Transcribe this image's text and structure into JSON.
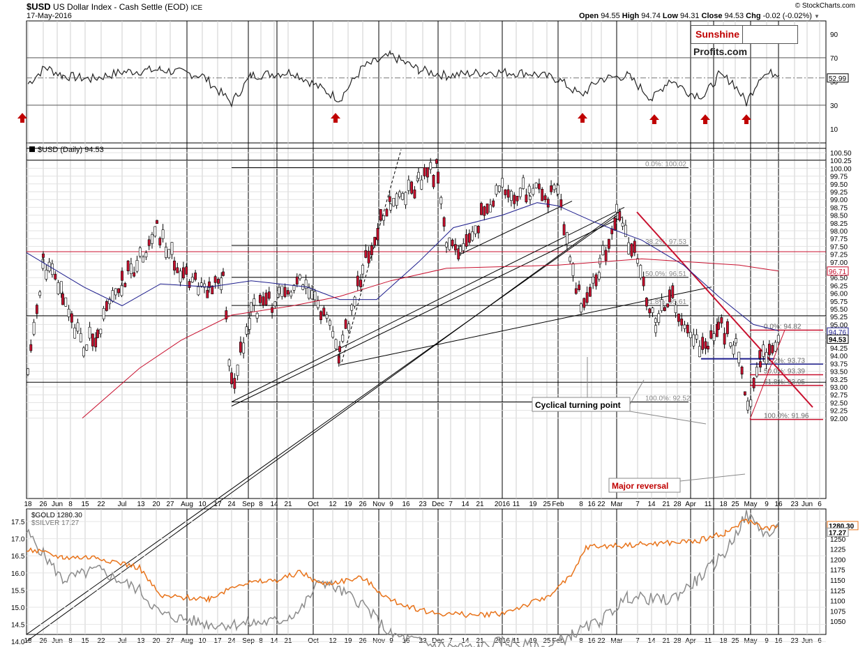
{
  "header": {
    "symbol": "$USD",
    "description": "US Dollar Index - Cash Settle (EOD)",
    "exchange": "ICE",
    "date": "17-May-2016",
    "watermark": "© StockCharts.com",
    "open_label": "Open",
    "open": "94.55",
    "high_label": "High",
    "high": "94.74",
    "low_label": "Low",
    "low": "94.31",
    "close_label": "Close",
    "close": "94.53",
    "chg_label": "Chg",
    "chg": "-0.02 (-0.02%)"
  },
  "logo": {
    "part1": "Sunshine",
    "part2": "Profits.com"
  },
  "colors": {
    "candle_down": "#c8102e",
    "ma50": "#1c1c8c",
    "ma200": "#c8102e",
    "gold": "#e8731a",
    "silver": "#8c8c8c",
    "arrow": "#c00000",
    "annotation_red": "#c00000"
  },
  "rsi_panel": {
    "levels": [
      "90",
      "70",
      "50",
      "30",
      "10"
    ],
    "current_label": "52.99"
  },
  "main_panel": {
    "legend": "$USD (Daily) 94.53",
    "price_label": "94.53",
    "ma50_label": "94.76",
    "ma200_label": "96.71",
    "y_ticks": [
      "100.50",
      "100.25",
      "100.00",
      "99.75",
      "99.50",
      "99.25",
      "99.00",
      "98.75",
      "98.50",
      "98.25",
      "98.00",
      "97.75",
      "97.50",
      "97.25",
      "97.00",
      "96.75",
      "96.50",
      "96.25",
      "96.00",
      "95.75",
      "95.50",
      "95.25",
      "95.00",
      "94.75",
      "94.50",
      "94.25",
      "94.00",
      "93.75",
      "93.50",
      "93.25",
      "93.00",
      "92.75",
      "92.50",
      "92.25",
      "92.00"
    ],
    "fib_upper": [
      "0.0%: 100.02",
      "38.2%: 97.53",
      "50.0%: 96.51",
      "61.8%: 95.61",
      "100.0%: 92.52"
    ],
    "fib_lower": [
      "0.0%: 94.82",
      "38.2%: 93.73",
      "50.0%: 93.39",
      "61.8%: 93.05",
      "100.0%: 91.96"
    ],
    "annotations": {
      "cyclical": "Cyclical turning point",
      "major": "Major reversal"
    }
  },
  "bottom_panel": {
    "gold_legend": "$GOLD 1280.30",
    "silver_legend": "$SILVER 17.27",
    "gold_label": "1280.30",
    "silver_label": "17.27",
    "left_ticks": [
      "17.5",
      "17.0",
      "16.5",
      "16.0",
      "15.5",
      "15.0",
      "14.5",
      "14.0"
    ],
    "right_ticks": [
      "1275",
      "1250",
      "1225",
      "1200",
      "1175",
      "1150",
      "1125",
      "1100",
      "1075",
      "1050"
    ]
  },
  "x_axis": [
    "18",
    "26",
    "Jun",
    "8",
    "15",
    "22",
    "Jul",
    "13",
    "20",
    "27",
    "Aug",
    "10",
    "17",
    "24",
    "Sep",
    "8",
    "14",
    "21",
    "Oct",
    "12",
    "19",
    "26",
    "Nov",
    "9",
    "16",
    "23",
    "Dec",
    "7",
    "14",
    "21",
    "2016",
    "11",
    "19",
    "25",
    "Feb",
    "8",
    "16",
    "22",
    "Mar",
    "7",
    "14",
    "21",
    "28",
    "Apr",
    "11",
    "18",
    "25",
    "May",
    "9",
    "16",
    "23",
    "Jun",
    "6"
  ],
  "chart_data": {
    "type": "candlestick",
    "title": "$USD US Dollar Index - Cash Settle (EOD)",
    "last_close": 94.53,
    "ylim": [
      91.85,
      100.7
    ],
    "fibonacci_levels": [
      {
        "level": "0.0%",
        "value": 100.02
      },
      {
        "level": "38.2%",
        "value": 97.53
      },
      {
        "level": "50.0%",
        "value": 96.51
      },
      {
        "level": "61.8%",
        "value": 95.61
      },
      {
        "level": "100.0%",
        "value": 92.52
      },
      {
        "level": "0.0%",
        "value": 94.82
      },
      {
        "level": "38.2%",
        "value": 93.73
      },
      {
        "level": "50.0%",
        "value": 93.39
      },
      {
        "level": "61.8%",
        "value": 93.05
      },
      {
        "level": "100.0%",
        "value": 91.96
      }
    ],
    "rsi_last": 52.99,
    "ma50_last": 94.76,
    "ma200_last": 96.71,
    "gold_last": 1280.3,
    "silver_last": 17.27
  }
}
